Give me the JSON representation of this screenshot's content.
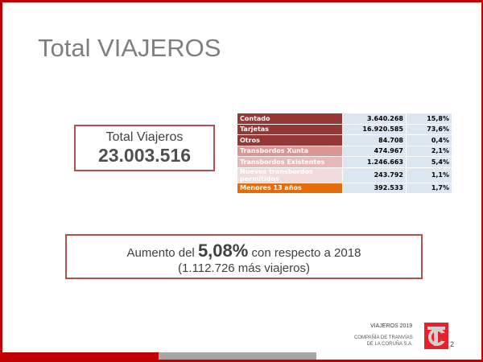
{
  "title": "Total VIAJEROS",
  "total": {
    "label": "Total  Viajeros",
    "value": "23.003.516"
  },
  "table": {
    "rows": [
      {
        "label": "Contado",
        "value": "3.640.268",
        "pct": "15,8%",
        "color": "#953735"
      },
      {
        "label": "Tarjetas",
        "value": "16.920.585",
        "pct": "73,6%",
        "color": "#953735"
      },
      {
        "label": "Otros",
        "value": "84.708",
        "pct": "0,4%",
        "color": "#953735"
      },
      {
        "label": "Transbordos Xunta",
        "value": "474.967",
        "pct": "2,1%",
        "color": "#d99694"
      },
      {
        "label": "Transbordos Existentes",
        "value": "1.246.663",
        "pct": "5,4%",
        "color": "#e6b9b8"
      },
      {
        "label": "Nuevos transbordos permitidos",
        "value": "243.792",
        "pct": "1,1%",
        "color": "#f2dcdb"
      },
      {
        "label": "Menores 13 años",
        "value": "392.533",
        "pct": "1,7%",
        "color": "#e46c0a"
      }
    ]
  },
  "increase": {
    "prefix": "Aumento  del ",
    "pct": "5,08%",
    "suffix": "  con respecto a 2018",
    "detail": "(1.112.726 más viajeros)"
  },
  "footer": {
    "section": "VIAJEROS 2019",
    "company_line1": "COMPAÑÍA DE TRANVÍAS",
    "company_line2": "DE LA CORUÑA S.A.",
    "logo_text": "TC",
    "page": "2"
  }
}
